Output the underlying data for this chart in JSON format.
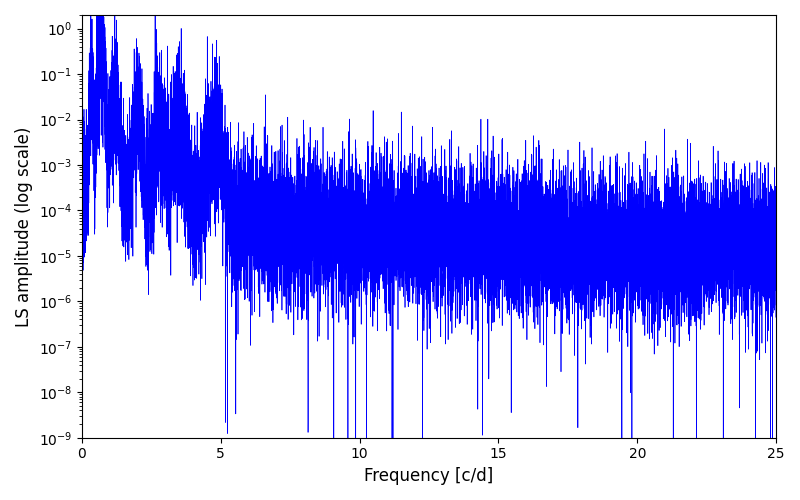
{
  "title": "",
  "xlabel": "Frequency [c/d]",
  "ylabel": "LS amplitude (log scale)",
  "xlim": [
    0,
    25
  ],
  "ylim": [
    1e-09,
    2
  ],
  "line_color": "#0000ff",
  "line_width": 0.5,
  "background_color": "#ffffff",
  "figsize": [
    8.0,
    5.0
  ],
  "dpi": 100,
  "freq_max": 25.0,
  "n_points": 15000,
  "seed": 7
}
